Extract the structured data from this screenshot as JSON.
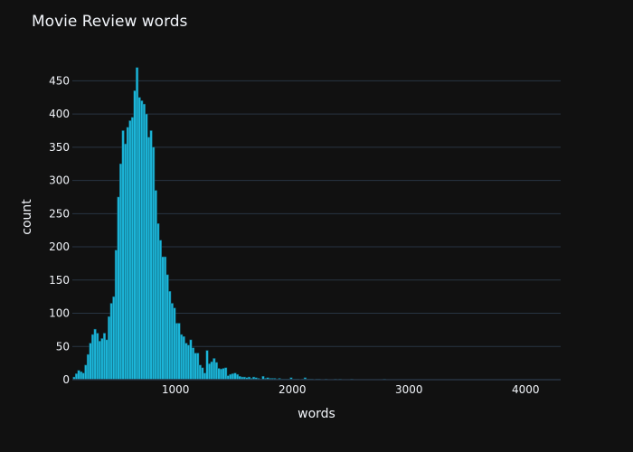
{
  "chart_data": {
    "type": "bar",
    "title": "Movie Review words",
    "xlabel": "words",
    "ylabel": "count",
    "xlim": [
      115,
      4300
    ],
    "ylim": [
      0,
      490
    ],
    "x_ticks": [
      1000,
      2000,
      3000,
      4000
    ],
    "x_tick_labels": [
      "1000",
      "2000",
      "3000",
      "4000"
    ],
    "y_ticks": [
      0,
      50,
      100,
      150,
      200,
      250,
      300,
      350,
      400,
      450
    ],
    "y_tick_labels": [
      "0",
      "50",
      "100",
      "150",
      "200",
      "250",
      "300",
      "350",
      "400",
      "450"
    ],
    "bin_start": 120,
    "bin_width": 20,
    "values": [
      4,
      9,
      14,
      12,
      10,
      22,
      38,
      55,
      68,
      76,
      70,
      58,
      62,
      70,
      60,
      95,
      115,
      125,
      195,
      275,
      325,
      375,
      355,
      380,
      390,
      395,
      435,
      470,
      425,
      420,
      415,
      400,
      365,
      375,
      350,
      285,
      235,
      210,
      185,
      185,
      158,
      133,
      115,
      108,
      85,
      85,
      68,
      65,
      55,
      52,
      60,
      48,
      40,
      40,
      22,
      18,
      10,
      44,
      24,
      27,
      32,
      26,
      17,
      16,
      17,
      18,
      6,
      8,
      9,
      10,
      8,
      5,
      4,
      4,
      3,
      4,
      2,
      4,
      3,
      2,
      1,
      5,
      2,
      3,
      2,
      2,
      2,
      1,
      2,
      1,
      1,
      1,
      1,
      3,
      1,
      1,
      1,
      0,
      1,
      3,
      1,
      1,
      1,
      0,
      1,
      1,
      0,
      0,
      1,
      0,
      0,
      0,
      1,
      0,
      1,
      0,
      0,
      0,
      0,
      1,
      0,
      0,
      0,
      0,
      0,
      0,
      0,
      0,
      0,
      0,
      0,
      0,
      0,
      1,
      0,
      0,
      0,
      0,
      0,
      0,
      0,
      0,
      0,
      0,
      0,
      0,
      0,
      0,
      0,
      0,
      0,
      0,
      0,
      0,
      0,
      0,
      0,
      0,
      0,
      0,
      0,
      0,
      0,
      0,
      0,
      0,
      0,
      0,
      0,
      0,
      0,
      0,
      0,
      0,
      0,
      0,
      0,
      0,
      0,
      0,
      0,
      0,
      0,
      0,
      0,
      0,
      0,
      0,
      0,
      0,
      0,
      0,
      0,
      0,
      0,
      0,
      0,
      0,
      0,
      0,
      0,
      0,
      0,
      0,
      0,
      0
    ],
    "bar_color": "#1cb5d8",
    "bar_edge_color": "#0f5f73",
    "background_color": "#111111",
    "grid_color": "#283442",
    "text_color": "#f2f5fa",
    "legend": "none"
  }
}
